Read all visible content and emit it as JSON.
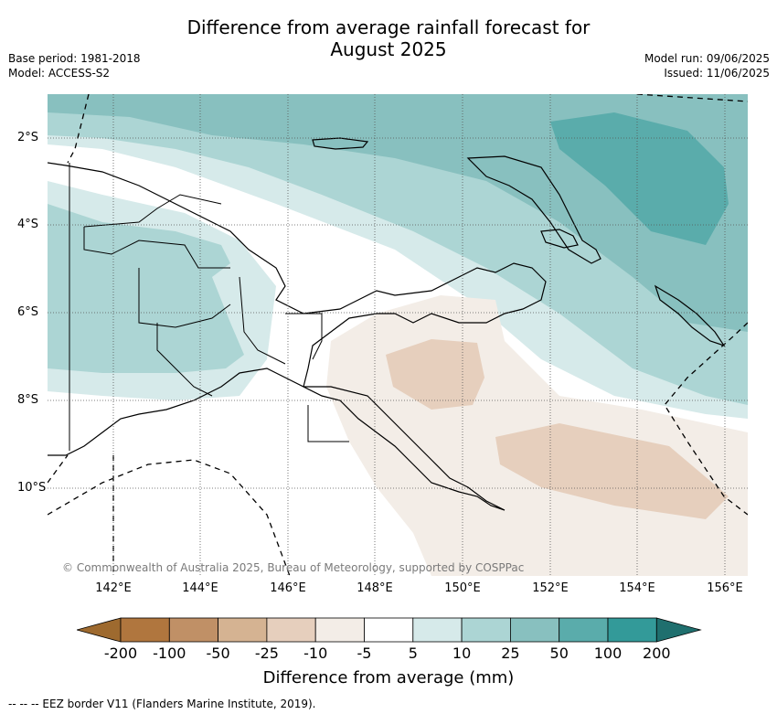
{
  "header": {
    "title_line1": "Difference from average rainfall forecast for",
    "title_line2": "August 2025",
    "base_period": "Base period: 1981-2018",
    "model": "Model: ACCESS-S2",
    "model_run": "Model run: 09/06/2025",
    "issued": "Issued: 11/06/2025"
  },
  "map": {
    "lat_labels": [
      "2°S",
      "4°S",
      "6°S",
      "8°S",
      "10°S"
    ],
    "lon_labels": [
      "142°E",
      "144°E",
      "146°E",
      "148°E",
      "150°E",
      "152°E",
      "154°E",
      "156°E"
    ],
    "copyright": "© Commonwealth of Australia 2025, Bureau of Meteorology, supported by COSPPac",
    "region_center": "Papua New Guinea",
    "lon_range": [
      140.5,
      156.5
    ],
    "lat_range": [
      -11.8,
      -1.0
    ]
  },
  "legend": {
    "title": "Difference from average (mm)",
    "labels": [
      "-200",
      "-100",
      "-50",
      "-25",
      "-10",
      "-5",
      "5",
      "10",
      "25",
      "50",
      "100",
      "200"
    ],
    "colors": [
      "#9e6a2f",
      "#b0763e",
      "#c09066",
      "#d5b392",
      "#e6cfbd",
      "#f3ede7",
      "#ffffff",
      "#d6eaea",
      "#acd5d4",
      "#88c0bf",
      "#5aacab",
      "#339a99",
      "#1f6f6e"
    ],
    "eez_note": "-- -- -- EEZ border V11 (Flanders Marine Institute, 2019)."
  }
}
